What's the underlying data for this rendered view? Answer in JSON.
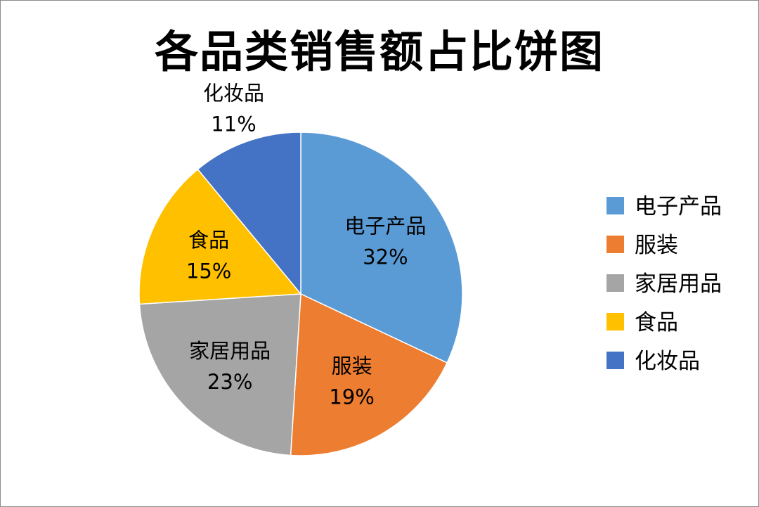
{
  "chart_data": {
    "type": "pie",
    "title": "各品类销售额占比饼图",
    "categories": [
      "电子产品",
      "服装",
      "家居用品",
      "食品",
      "化妆品"
    ],
    "values": [
      32,
      19,
      23,
      15,
      11
    ],
    "value_labels": [
      "32%",
      "19%",
      "23%",
      "15%",
      "11%"
    ],
    "colors": [
      "#5b9bd5",
      "#ed7d31",
      "#a5a5a5",
      "#ffc000",
      "#4472c4"
    ],
    "legend": {
      "position": "right",
      "items": [
        "电子产品",
        "服装",
        "家居用品",
        "食品",
        "化妆品"
      ]
    }
  }
}
